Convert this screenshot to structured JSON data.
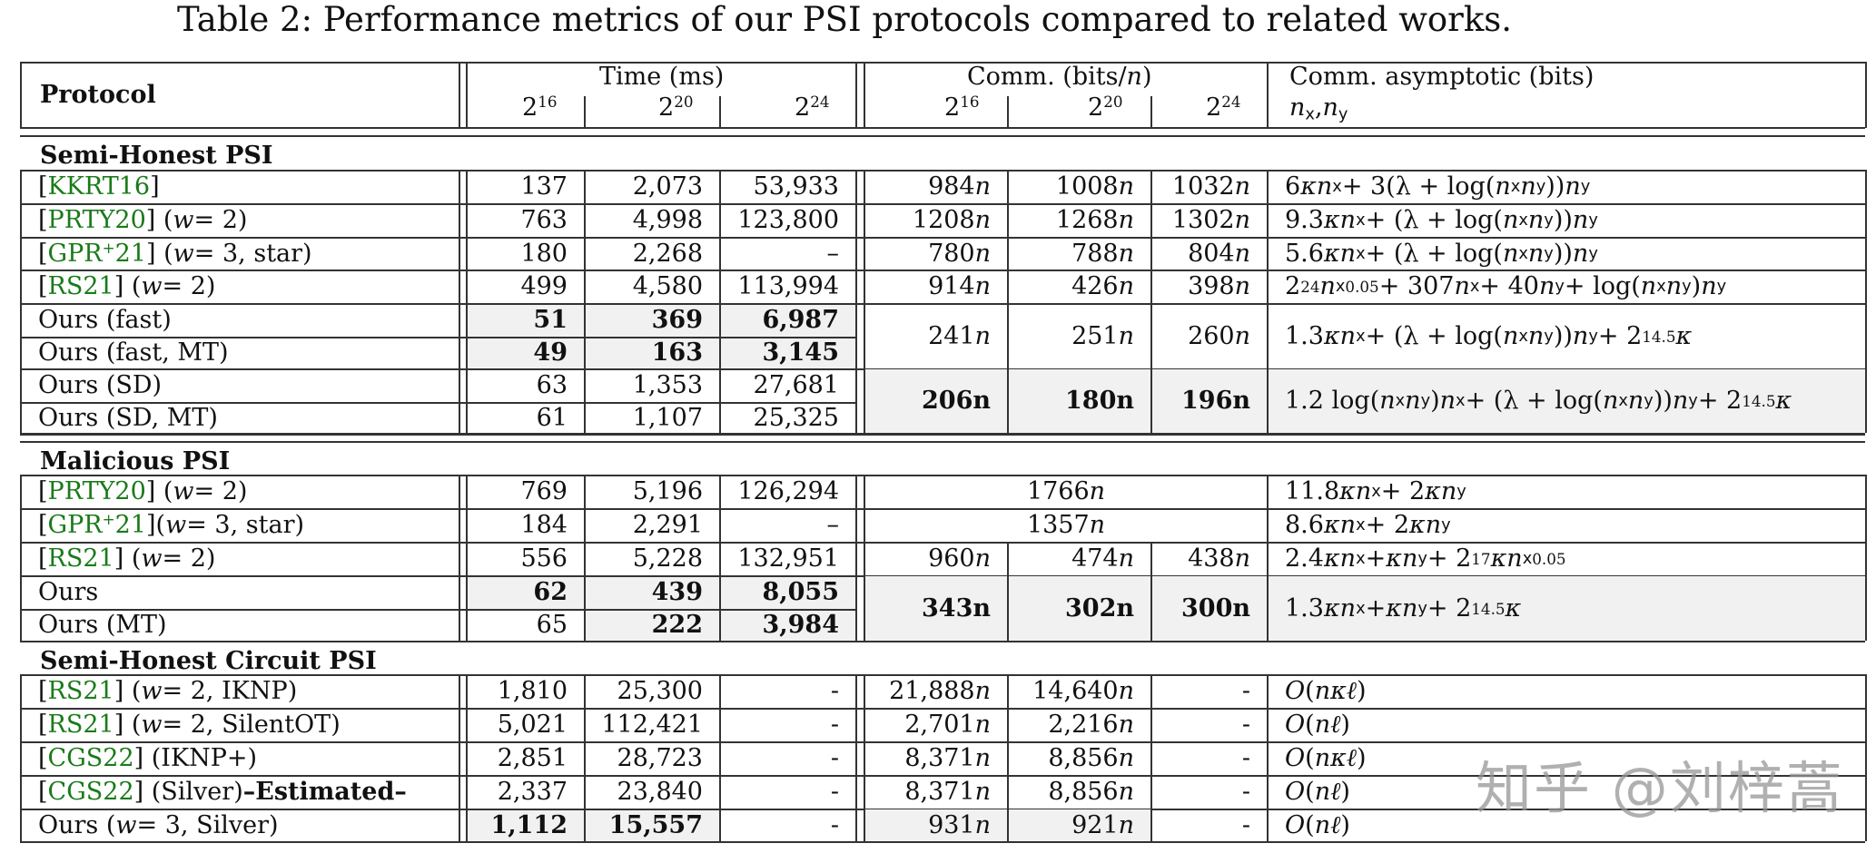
{
  "caption": "Table 2: Performance metrics of our PSI protocols compared to related works.",
  "header": {
    "protocol": "Protocol",
    "time_group": "Time (ms)",
    "comm_group": "Comm. (bits/n)",
    "asym_group": "Comm. asymptotic (bits)",
    "asym_sub": "nx,ny",
    "sizes": [
      "2^16",
      "2^20",
      "2^24"
    ]
  },
  "sections": [
    {
      "title": "Semi-Honest PSI",
      "rows": [
        {
          "ref": "KKRT16",
          "suffix": "",
          "time": [
            "137",
            "2,073",
            "53,933"
          ],
          "comm": [
            "984n",
            "1008n",
            "1032n"
          ],
          "asym": "6κn_x + 3(λ + log(n_x n_y))n_y"
        },
        {
          "ref": "PRTY20",
          "suffix": " (w = 2)",
          "time": [
            "763",
            "4,998",
            "123,800"
          ],
          "comm": [
            "1208n",
            "1268n",
            "1302n"
          ],
          "asym": "9.3κn_x + (λ + log(n_x n_y))n_y"
        },
        {
          "ref": "GPR+21",
          "suffix": " (w = 3, star)",
          "time": [
            "180",
            "2,268",
            "–"
          ],
          "comm": [
            "780n",
            "788n",
            "804n"
          ],
          "asym": "5.6κn_x + (λ + log(n_x n_y))n_y"
        },
        {
          "ref": "RS21",
          "suffix": " (w = 2)",
          "time": [
            "499",
            "4,580",
            "113,994"
          ],
          "comm": [
            "914n",
            "426n",
            "398n"
          ],
          "asym": "2^24 n_x^0.05 + 307n_x + 40n_y + log(n_x n_y)n_y"
        },
        {
          "ref": "",
          "suffix": "Ours (fast)",
          "time": [
            "51",
            "369",
            "6,987"
          ],
          "comm": [
            "241n",
            "251n",
            "260n"
          ],
          "asym": "1.3κn_x + (λ + log(n_x n_y))n_y + 2^14.5 κ",
          "bold_time": true
        },
        {
          "ref": "",
          "suffix": "Ours (fast, MT)",
          "time": [
            "49",
            "163",
            "3,145"
          ],
          "comm_merged_with_previous": true,
          "bold_time": true
        },
        {
          "ref": "",
          "suffix": "Ours (SD)",
          "time": [
            "63",
            "1,353",
            "27,681"
          ],
          "comm": [
            "206n",
            "180n",
            "196n"
          ],
          "asym": "1.2 log(n_x n_y)n_x + (λ + log(n_x n_y))n_y + 2^14.5 κ",
          "bold_comm": true
        },
        {
          "ref": "",
          "suffix": "Ours (SD, MT)",
          "time": [
            "61",
            "1,107",
            "25,325"
          ],
          "comm_merged_with_previous": true
        }
      ]
    },
    {
      "title": "Malicious PSI",
      "rows": [
        {
          "ref": "PRTY20",
          "suffix": " (w = 2)",
          "time": [
            "769",
            "5,196",
            "126,294"
          ],
          "comm_span": "1766n",
          "asym": "11.8κn_x + 2κn_y"
        },
        {
          "ref": "GPR+21",
          "suffix": "(w = 3, star)",
          "time": [
            "184",
            "2,291",
            "–"
          ],
          "comm_span": "1357n",
          "asym": "8.6κn_x + 2κn_y"
        },
        {
          "ref": "RS21",
          "suffix": " (w = 2)",
          "time": [
            "556",
            "5,228",
            "132,951"
          ],
          "comm": [
            "960n",
            "474n",
            "438n"
          ],
          "asym": "2.4κn_x + κn_y + 2^17 κn_x^0.05"
        },
        {
          "ref": "",
          "suffix": "Ours",
          "time": [
            "62",
            "439",
            "8,055"
          ],
          "comm": [
            "343n",
            "302n",
            "300n"
          ],
          "asym": "1.3κn_x + κn_y + 2^14.5 κ",
          "bold_comm": true
        },
        {
          "ref": "",
          "suffix": "Ours (MT)",
          "time": [
            "65",
            "222",
            "3,984"
          ],
          "comm_merged_with_previous": true
        }
      ]
    },
    {
      "title": "Semi-Honest Circuit PSI",
      "rows": [
        {
          "ref": "RS21",
          "suffix": " (w = 2, IKNP)",
          "time": [
            "1,810",
            "25,300",
            "-"
          ],
          "comm": [
            "21,888n",
            "14,640n",
            "-"
          ],
          "asym": "O(nκℓ)"
        },
        {
          "ref": "RS21",
          "suffix": " (w = 2, SilentOT)",
          "time": [
            "5,021",
            "112,421",
            "-"
          ],
          "comm": [
            "2,701n",
            "2,216n",
            "-"
          ],
          "asym": "O(nℓ)"
        },
        {
          "ref": "CGS22",
          "suffix": " (IKNP+)",
          "time": [
            "2,851",
            "28,723",
            "-"
          ],
          "comm": [
            "8,371n",
            "8,856n",
            "-"
          ],
          "asym": "O(nκℓ)"
        },
        {
          "ref": "CGS22",
          "suffix": " (Silver) ",
          "suffix_bold": "–Estimated–",
          "time": [
            "2,337",
            "23,840",
            "-"
          ],
          "comm": [
            "8,371n",
            "8,856n",
            "-"
          ],
          "asym": "O(nℓ)"
        },
        {
          "ref": "",
          "suffix": "Ours (w = 3, Silver)",
          "time": [
            "1,112",
            "15,557",
            "-"
          ],
          "comm": [
            "931n",
            "921n",
            "-"
          ],
          "asym": "O(nℓ)"
        }
      ]
    }
  ],
  "watermark": "知乎 @刘梓蒿",
  "colors": {
    "reference_link": "#1a7a1a",
    "highlight_fill": "#f1f1f1",
    "rule": "#333333"
  }
}
